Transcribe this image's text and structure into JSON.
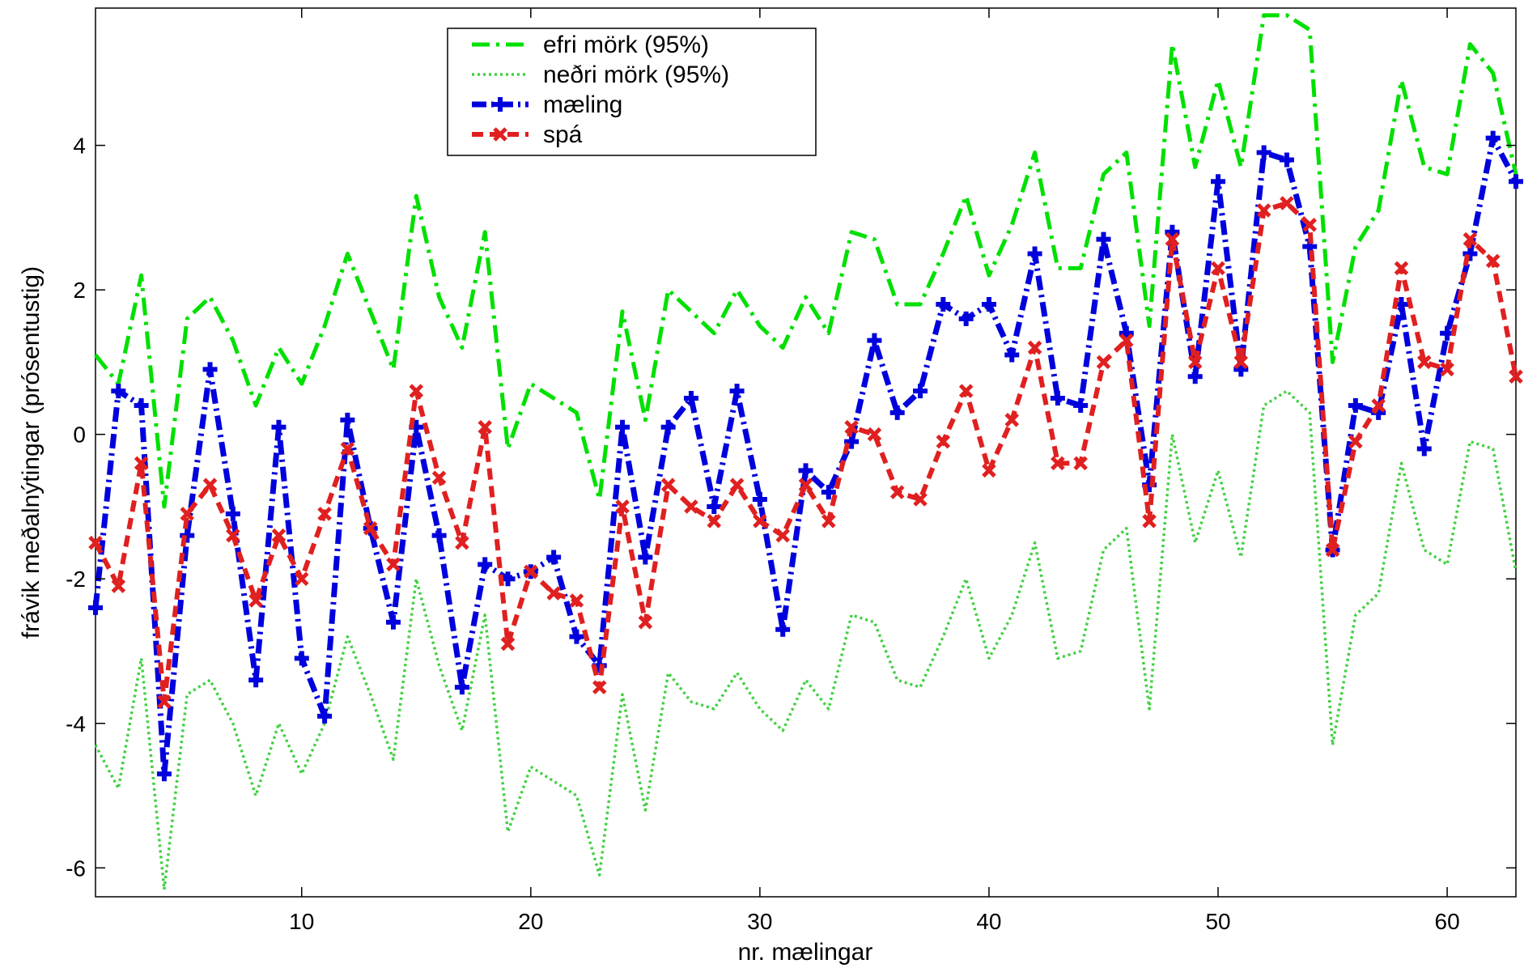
{
  "chart_data": {
    "type": "line",
    "xlabel": "nr. mælingar",
    "ylabel": "frávik meðalnýtingar (prósentustig)",
    "xlim": [
      1,
      63
    ],
    "ylim": [
      -6.4,
      5.9
    ],
    "xticks": [
      10,
      20,
      30,
      40,
      50,
      60
    ],
    "yticks": [
      -6,
      -4,
      -2,
      0,
      2,
      4
    ],
    "grid": false,
    "legend_position": "top-center",
    "x": [
      1,
      2,
      3,
      4,
      5,
      6,
      7,
      8,
      9,
      10,
      11,
      12,
      13,
      14,
      15,
      16,
      17,
      18,
      19,
      20,
      21,
      22,
      23,
      24,
      25,
      26,
      27,
      28,
      29,
      30,
      31,
      32,
      33,
      34,
      35,
      36,
      37,
      38,
      39,
      40,
      41,
      42,
      43,
      44,
      45,
      46,
      47,
      48,
      49,
      50,
      51,
      52,
      53,
      54,
      55,
      56,
      57,
      58,
      59,
      60,
      61,
      62,
      63
    ],
    "series": [
      {
        "name": "efri mörk (95%)",
        "color": "#00e000",
        "style": "dashdot",
        "values": [
          1.1,
          0.7,
          2.2,
          -1.0,
          1.6,
          1.9,
          1.3,
          0.4,
          1.2,
          0.7,
          1.5,
          2.5,
          1.7,
          0.9,
          3.3,
          1.9,
          1.2,
          2.8,
          -0.2,
          0.7,
          0.5,
          0.3,
          -0.9,
          1.7,
          0.2,
          2.0,
          1.7,
          1.4,
          2.0,
          1.5,
          1.2,
          1.9,
          1.4,
          2.8,
          2.7,
          1.8,
          1.8,
          2.5,
          3.3,
          2.2,
          2.9,
          3.9,
          2.3,
          2.3,
          3.6,
          3.9,
          1.5,
          5.4,
          3.7,
          4.9,
          3.7,
          5.8,
          5.8,
          5.6,
          1.0,
          2.6,
          3.1,
          4.9,
          3.7,
          3.6,
          5.4,
          5.0,
          3.6
        ]
      },
      {
        "name": "neðri mörk (95%)",
        "color": "#40d040",
        "style": "dotted",
        "values": [
          -4.3,
          -4.9,
          -3.1,
          -6.3,
          -3.6,
          -3.4,
          -4.0,
          -5.0,
          -4.0,
          -4.7,
          -4.0,
          -2.8,
          -3.6,
          -4.5,
          -2.0,
          -3.2,
          -4.1,
          -2.5,
          -5.5,
          -4.6,
          -4.8,
          -5.0,
          -6.1,
          -3.6,
          -5.2,
          -3.3,
          -3.7,
          -3.8,
          -3.3,
          -3.8,
          -4.1,
          -3.4,
          -3.8,
          -2.5,
          -2.6,
          -3.4,
          -3.5,
          -2.8,
          -2.0,
          -3.1,
          -2.5,
          -1.5,
          -3.1,
          -3.0,
          -1.6,
          -1.3,
          -3.8,
          0.0,
          -1.5,
          -0.5,
          -1.7,
          0.4,
          0.6,
          0.3,
          -4.3,
          -2.5,
          -2.2,
          -0.4,
          -1.6,
          -1.8,
          -0.1,
          -0.2,
          -1.9
        ]
      },
      {
        "name": "mæling",
        "color": "#0000dd",
        "style": "dashdot-plus",
        "values": [
          -2.4,
          0.6,
          0.4,
          -4.7,
          -1.4,
          0.9,
          -1.1,
          -3.4,
          0.1,
          -3.1,
          -3.9,
          0.2,
          -1.3,
          -2.6,
          0.1,
          -1.4,
          -3.5,
          -1.8,
          -2.0,
          -1.9,
          -1.7,
          -2.8,
          -3.2,
          0.1,
          -1.7,
          0.1,
          0.5,
          -1.0,
          0.6,
          -0.9,
          -2.7,
          -0.5,
          -0.8,
          -0.1,
          1.3,
          0.3,
          0.6,
          1.8,
          1.6,
          1.8,
          1.1,
          2.5,
          0.5,
          0.4,
          2.7,
          1.4,
          -0.7,
          2.8,
          0.8,
          3.5,
          0.9,
          3.9,
          3.8,
          2.6,
          -1.6,
          0.4,
          0.3,
          1.8,
          -0.2,
          1.4,
          2.5,
          4.1,
          3.5
        ]
      },
      {
        "name": "spá",
        "color": "#e02020",
        "style": "dashed-x",
        "values": [
          -1.5,
          -2.1,
          -0.4,
          -3.7,
          -1.1,
          -0.7,
          -1.4,
          -2.3,
          -1.4,
          -2.0,
          -1.1,
          -0.2,
          -1.3,
          -1.8,
          0.6,
          -0.6,
          -1.5,
          0.1,
          -2.9,
          -1.9,
          -2.2,
          -2.3,
          -3.5,
          -1.0,
          -2.6,
          -0.7,
          -1.0,
          -1.2,
          -0.7,
          -1.2,
          -1.4,
          -0.7,
          -1.2,
          0.1,
          0.0,
          -0.8,
          -0.9,
          -0.1,
          0.6,
          -0.5,
          0.2,
          1.2,
          -0.4,
          -0.4,
          1.0,
          1.3,
          -1.2,
          2.7,
          1.0,
          2.3,
          1.0,
          3.1,
          3.2,
          2.9,
          -1.6,
          -0.1,
          0.4,
          2.3,
          1.0,
          0.9,
          2.7,
          2.4,
          0.8
        ]
      }
    ]
  }
}
